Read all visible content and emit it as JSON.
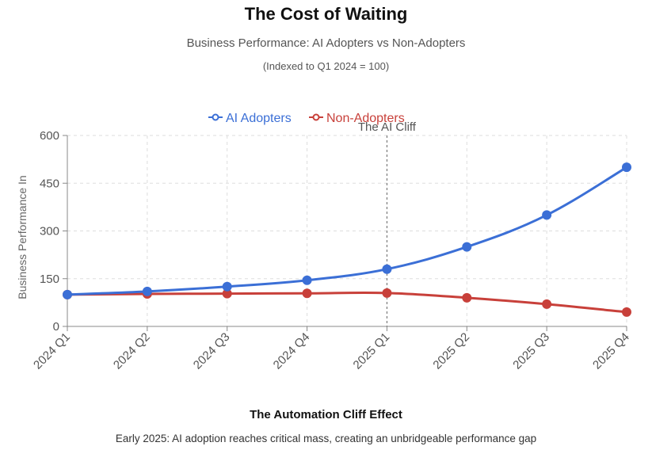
{
  "header": {
    "title": "The Cost of Waiting",
    "subtitle": "Business Performance: AI Adopters vs Non-Adopters",
    "note": "(Indexed to Q1 2024 = 100)"
  },
  "footer": {
    "title": "The Automation Cliff Effect",
    "description": "Early 2025: AI adoption reaches critical mass, creating an unbridgeable performance gap"
  },
  "colors": {
    "ai": "#3b6fd6",
    "non": "#c8403a",
    "grid": "#dddddd",
    "axis": "#888888"
  },
  "chart_data": {
    "type": "line",
    "title": "The Cost of Waiting",
    "categories": [
      "2024 Q1",
      "2024 Q2",
      "2024 Q3",
      "2024 Q4",
      "2025 Q1",
      "2025 Q2",
      "2025 Q3",
      "2025 Q4"
    ],
    "series": [
      {
        "name": "AI Adopters",
        "color": "#3b6fd6",
        "values": [
          100,
          110,
          125,
          145,
          180,
          250,
          350,
          500
        ]
      },
      {
        "name": "Non-Adopters",
        "color": "#c8403a",
        "values": [
          100,
          102,
          103,
          104,
          105,
          90,
          70,
          45
        ]
      }
    ],
    "xlabel": "",
    "ylabel": "Business Performance In",
    "ylim": [
      0,
      600
    ],
    "yticks": [
      0,
      150,
      300,
      450,
      600
    ],
    "grid": true,
    "legend_position": "top-center",
    "annotation": {
      "category": "2025 Q1",
      "text": "The AI Cliff"
    }
  }
}
